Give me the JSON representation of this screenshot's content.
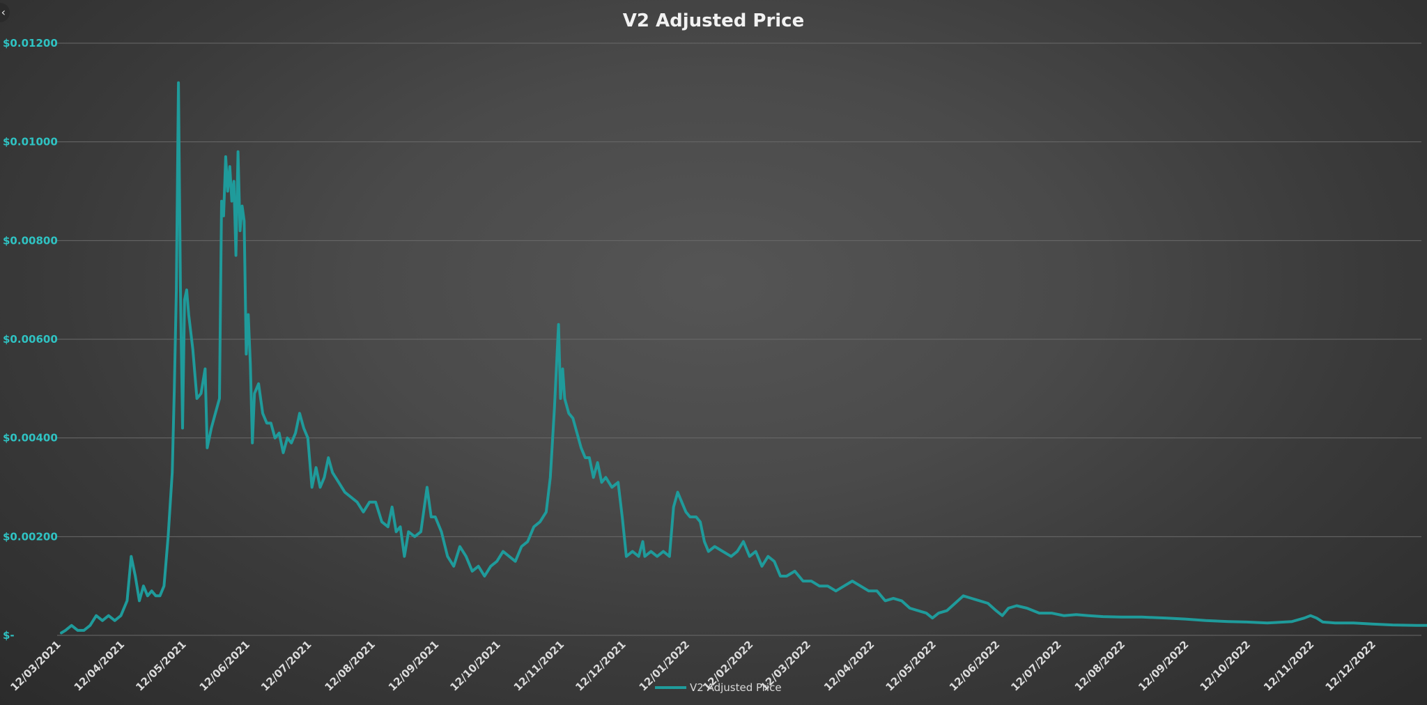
{
  "back_button_icon": "chevron-left-icon",
  "chart_data": {
    "type": "line",
    "title": "V2 Adjusted  Price",
    "xlabel": "",
    "ylabel": "",
    "y_tick_labels": [
      "$-",
      "$0.00200",
      "$0.00400",
      "$0.00600",
      "$0.00800",
      "$0.01000",
      "$0.01200"
    ],
    "y_tick_values": [
      0,
      0.002,
      0.004,
      0.006,
      0.008,
      0.01,
      0.012
    ],
    "ylim": [
      0,
      0.012
    ],
    "x_tick_labels": [
      "12/03/2021",
      "12/04/2021",
      "12/05/2021",
      "12/06/2021",
      "12/07/2021",
      "12/08/2021",
      "12/09/2021",
      "12/10/2021",
      "12/11/2021",
      "12/12/2021",
      "12/01/2022",
      "12/02/2022",
      "12/03/2022",
      "12/04/2022",
      "12/05/2022",
      "12/06/2022",
      "12/07/2022",
      "12/08/2022",
      "12/09/2022",
      "12/10/2022",
      "12/11/2022",
      "12/12/2022"
    ],
    "xlim": [
      "12/03/2021",
      "03/01/2023"
    ],
    "grid": true,
    "legend_position": "bottom",
    "colors": {
      "series": "#1f9b9b",
      "axis_text": "#2fc3c3",
      "title": "#f2f2f2"
    },
    "series": [
      {
        "name": "V2 Adjusted Price",
        "points": [
          [
            "12/03/2021",
            5e-05
          ],
          [
            "14/03/2021",
            0.0001
          ],
          [
            "17/03/2021",
            0.0002
          ],
          [
            "20/03/2021",
            0.0001
          ],
          [
            "23/03/2021",
            0.0001
          ],
          [
            "26/03/2021",
            0.0002
          ],
          [
            "29/03/2021",
            0.0004
          ],
          [
            "01/04/2021",
            0.0003
          ],
          [
            "04/04/2021",
            0.0004
          ],
          [
            "07/04/2021",
            0.0003
          ],
          [
            "10/04/2021",
            0.0004
          ],
          [
            "13/04/2021",
            0.0007
          ],
          [
            "15/04/2021",
            0.0016
          ],
          [
            "17/04/2021",
            0.0012
          ],
          [
            "19/04/2021",
            0.0007
          ],
          [
            "21/04/2021",
            0.001
          ],
          [
            "23/04/2021",
            0.0008
          ],
          [
            "25/04/2021",
            0.0009
          ],
          [
            "27/04/2021",
            0.0008
          ],
          [
            "29/04/2021",
            0.0008
          ],
          [
            "01/05/2021",
            0.001
          ],
          [
            "03/05/2021",
            0.002
          ],
          [
            "05/05/2021",
            0.0033
          ],
          [
            "06/05/2021",
            0.005
          ],
          [
            "07/05/2021",
            0.007
          ],
          [
            "08/05/2021",
            0.0112
          ],
          [
            "09/05/2021",
            0.007
          ],
          [
            "10/05/2021",
            0.0042
          ],
          [
            "11/05/2021",
            0.0068
          ],
          [
            "12/05/2021",
            0.007
          ],
          [
            "13/05/2021",
            0.0065
          ],
          [
            "15/05/2021",
            0.0058
          ],
          [
            "17/05/2021",
            0.0048
          ],
          [
            "19/05/2021",
            0.0049
          ],
          [
            "21/05/2021",
            0.0054
          ],
          [
            "22/05/2021",
            0.0038
          ],
          [
            "24/05/2021",
            0.0042
          ],
          [
            "26/05/2021",
            0.0045
          ],
          [
            "28/05/2021",
            0.0048
          ],
          [
            "29/05/2021",
            0.0088
          ],
          [
            "30/05/2021",
            0.0085
          ],
          [
            "31/05/2021",
            0.0097
          ],
          [
            "01/06/2021",
            0.009
          ],
          [
            "02/06/2021",
            0.0095
          ],
          [
            "03/06/2021",
            0.0088
          ],
          [
            "04/06/2021",
            0.0092
          ],
          [
            "05/06/2021",
            0.0077
          ],
          [
            "06/06/2021",
            0.0098
          ],
          [
            "07/06/2021",
            0.0082
          ],
          [
            "08/06/2021",
            0.0087
          ],
          [
            "09/06/2021",
            0.0084
          ],
          [
            "10/06/2021",
            0.0057
          ],
          [
            "11/06/2021",
            0.0065
          ],
          [
            "12/06/2021",
            0.0055
          ],
          [
            "13/06/2021",
            0.0039
          ],
          [
            "14/06/2021",
            0.0049
          ],
          [
            "16/06/2021",
            0.0051
          ],
          [
            "18/06/2021",
            0.0045
          ],
          [
            "20/06/2021",
            0.0043
          ],
          [
            "22/06/2021",
            0.0043
          ],
          [
            "24/06/2021",
            0.004
          ],
          [
            "26/06/2021",
            0.0041
          ],
          [
            "28/06/2021",
            0.0037
          ],
          [
            "30/06/2021",
            0.004
          ],
          [
            "02/07/2021",
            0.0039
          ],
          [
            "04/07/2021",
            0.0041
          ],
          [
            "06/07/2021",
            0.0045
          ],
          [
            "08/07/2021",
            0.0042
          ],
          [
            "10/07/2021",
            0.004
          ],
          [
            "12/07/2021",
            0.003
          ],
          [
            "14/07/2021",
            0.0034
          ],
          [
            "16/07/2021",
            0.003
          ],
          [
            "18/07/2021",
            0.0032
          ],
          [
            "20/07/2021",
            0.0036
          ],
          [
            "22/07/2021",
            0.0033
          ],
          [
            "25/07/2021",
            0.0031
          ],
          [
            "28/07/2021",
            0.0029
          ],
          [
            "31/07/2021",
            0.0028
          ],
          [
            "03/08/2021",
            0.0027
          ],
          [
            "06/08/2021",
            0.0025
          ],
          [
            "09/08/2021",
            0.0027
          ],
          [
            "12/08/2021",
            0.0027
          ],
          [
            "15/08/2021",
            0.0023
          ],
          [
            "18/08/2021",
            0.0022
          ],
          [
            "20/08/2021",
            0.0026
          ],
          [
            "22/08/2021",
            0.0021
          ],
          [
            "24/08/2021",
            0.0022
          ],
          [
            "26/08/2021",
            0.0016
          ],
          [
            "28/08/2021",
            0.0021
          ],
          [
            "31/08/2021",
            0.002
          ],
          [
            "03/09/2021",
            0.0021
          ],
          [
            "06/09/2021",
            0.003
          ],
          [
            "08/09/2021",
            0.0024
          ],
          [
            "10/09/2021",
            0.0024
          ],
          [
            "13/09/2021",
            0.0021
          ],
          [
            "16/09/2021",
            0.0016
          ],
          [
            "19/09/2021",
            0.0014
          ],
          [
            "22/09/2021",
            0.0018
          ],
          [
            "25/09/2021",
            0.0016
          ],
          [
            "28/09/2021",
            0.0013
          ],
          [
            "01/10/2021",
            0.0014
          ],
          [
            "04/10/2021",
            0.0012
          ],
          [
            "07/10/2021",
            0.0014
          ],
          [
            "10/10/2021",
            0.0015
          ],
          [
            "13/10/2021",
            0.0017
          ],
          [
            "16/10/2021",
            0.0016
          ],
          [
            "19/10/2021",
            0.0015
          ],
          [
            "22/10/2021",
            0.0018
          ],
          [
            "25/10/2021",
            0.0019
          ],
          [
            "28/10/2021",
            0.0022
          ],
          [
            "31/10/2021",
            0.0023
          ],
          [
            "03/11/2021",
            0.0025
          ],
          [
            "05/11/2021",
            0.0032
          ],
          [
            "07/11/2021",
            0.0046
          ],
          [
            "09/11/2021",
            0.0063
          ],
          [
            "10/11/2021",
            0.0048
          ],
          [
            "11/11/2021",
            0.0054
          ],
          [
            "12/11/2021",
            0.0048
          ],
          [
            "14/11/2021",
            0.0045
          ],
          [
            "16/11/2021",
            0.0044
          ],
          [
            "18/11/2021",
            0.0041
          ],
          [
            "20/11/2021",
            0.0038
          ],
          [
            "22/11/2021",
            0.0036
          ],
          [
            "24/11/2021",
            0.0036
          ],
          [
            "26/11/2021",
            0.0032
          ],
          [
            "28/11/2021",
            0.0035
          ],
          [
            "30/11/2021",
            0.0031
          ],
          [
            "02/12/2021",
            0.0032
          ],
          [
            "05/12/2021",
            0.003
          ],
          [
            "08/12/2021",
            0.0031
          ],
          [
            "10/12/2021",
            0.0024
          ],
          [
            "12/12/2021",
            0.0016
          ],
          [
            "15/12/2021",
            0.0017
          ],
          [
            "18/12/2021",
            0.0016
          ],
          [
            "20/12/2021",
            0.0019
          ],
          [
            "21/12/2021",
            0.0016
          ],
          [
            "24/12/2021",
            0.0017
          ],
          [
            "27/12/2021",
            0.0016
          ],
          [
            "30/12/2021",
            0.0017
          ],
          [
            "02/01/2022",
            0.0016
          ],
          [
            "04/01/2022",
            0.0026
          ],
          [
            "06/01/2022",
            0.0029
          ],
          [
            "08/01/2022",
            0.0027
          ],
          [
            "10/01/2022",
            0.0025
          ],
          [
            "12/01/2022",
            0.0024
          ],
          [
            "15/01/2022",
            0.0024
          ],
          [
            "17/01/2022",
            0.0023
          ],
          [
            "19/01/2022",
            0.0019
          ],
          [
            "21/01/2022",
            0.0017
          ],
          [
            "24/01/2022",
            0.0018
          ],
          [
            "28/01/2022",
            0.0017
          ],
          [
            "01/02/2022",
            0.0016
          ],
          [
            "04/02/2022",
            0.0017
          ],
          [
            "07/02/2022",
            0.0019
          ],
          [
            "10/02/2022",
            0.0016
          ],
          [
            "13/02/2022",
            0.0017
          ],
          [
            "16/02/2022",
            0.0014
          ],
          [
            "19/02/2022",
            0.0016
          ],
          [
            "22/02/2022",
            0.0015
          ],
          [
            "25/02/2022",
            0.0012
          ],
          [
            "28/02/2022",
            0.0012
          ],
          [
            "04/03/2022",
            0.0013
          ],
          [
            "08/03/2022",
            0.0011
          ],
          [
            "12/03/2022",
            0.0011
          ],
          [
            "16/03/2022",
            0.001
          ],
          [
            "20/03/2022",
            0.001
          ],
          [
            "24/03/2022",
            0.0009
          ],
          [
            "28/03/2022",
            0.001
          ],
          [
            "01/04/2022",
            0.0011
          ],
          [
            "05/04/2022",
            0.001
          ],
          [
            "09/04/2022",
            0.0009
          ],
          [
            "13/04/2022",
            0.0009
          ],
          [
            "17/04/2022",
            0.0007
          ],
          [
            "21/04/2022",
            0.00075
          ],
          [
            "25/04/2022",
            0.0007
          ],
          [
            "29/04/2022",
            0.00055
          ],
          [
            "03/05/2022",
            0.0005
          ],
          [
            "07/05/2022",
            0.00045
          ],
          [
            "10/05/2022",
            0.00035
          ],
          [
            "13/05/2022",
            0.00045
          ],
          [
            "17/05/2022",
            0.0005
          ],
          [
            "21/05/2022",
            0.00065
          ],
          [
            "25/05/2022",
            0.0008
          ],
          [
            "29/05/2022",
            0.00075
          ],
          [
            "02/06/2022",
            0.0007
          ],
          [
            "06/06/2022",
            0.00065
          ],
          [
            "10/06/2022",
            0.0005
          ],
          [
            "13/06/2022",
            0.0004
          ],
          [
            "16/06/2022",
            0.00055
          ],
          [
            "20/06/2022",
            0.0006
          ],
          [
            "25/06/2022",
            0.00055
          ],
          [
            "01/07/2022",
            0.00045
          ],
          [
            "07/07/2022",
            0.00045
          ],
          [
            "13/07/2022",
            0.0004
          ],
          [
            "19/07/2022",
            0.00042
          ],
          [
            "25/07/2022",
            0.0004
          ],
          [
            "01/08/2022",
            0.00038
          ],
          [
            "10/08/2022",
            0.00037
          ],
          [
            "20/08/2022",
            0.00037
          ],
          [
            "01/09/2022",
            0.00035
          ],
          [
            "10/09/2022",
            0.00033
          ],
          [
            "20/09/2022",
            0.0003
          ],
          [
            "01/10/2022",
            0.00028
          ],
          [
            "10/10/2022",
            0.00027
          ],
          [
            "20/10/2022",
            0.00025
          ],
          [
            "01/11/2022",
            0.00028
          ],
          [
            "07/11/2022",
            0.00035
          ],
          [
            "10/11/2022",
            0.0004
          ],
          [
            "13/11/2022",
            0.00035
          ],
          [
            "16/11/2022",
            0.00027
          ],
          [
            "22/11/2022",
            0.00025
          ],
          [
            "01/12/2022",
            0.00025
          ],
          [
            "10/12/2022",
            0.00023
          ],
          [
            "20/12/2022",
            0.00021
          ],
          [
            "01/01/2023",
            0.0002
          ],
          [
            "15/01/2023",
            0.0002
          ],
          [
            "01/02/2023",
            0.0002
          ],
          [
            "15/02/2023",
            0.00019
          ],
          [
            "01/03/2023",
            0.00019
          ]
        ]
      }
    ]
  }
}
